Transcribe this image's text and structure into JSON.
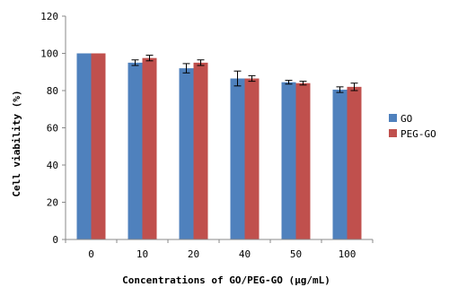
{
  "chart_data": {
    "type": "bar",
    "title": "",
    "xlabel": "Concentrations of GO/PEG-GO (μg/mL)",
    "ylabel": "Cell viability (%)",
    "categories": [
      "0",
      "10",
      "20",
      "40",
      "50",
      "100"
    ],
    "ylim": [
      0,
      120
    ],
    "yticks": [
      "0",
      "20",
      "40",
      "60",
      "80",
      "100",
      "120"
    ],
    "grid": false,
    "legend_position": "right",
    "series": [
      {
        "name": "GO",
        "color": "#4F81BD",
        "values": [
          100,
          95,
          92,
          86.5,
          84.5,
          80.5
        ],
        "errors": [
          0,
          1.5,
          2.5,
          4,
          1,
          1.5
        ]
      },
      {
        "name": "PEG-GO",
        "color": "#C0504D",
        "values": [
          100,
          97.5,
          95,
          86.5,
          84,
          82
        ],
        "errors": [
          0,
          1.5,
          1.5,
          1.5,
          1,
          2
        ]
      }
    ]
  }
}
